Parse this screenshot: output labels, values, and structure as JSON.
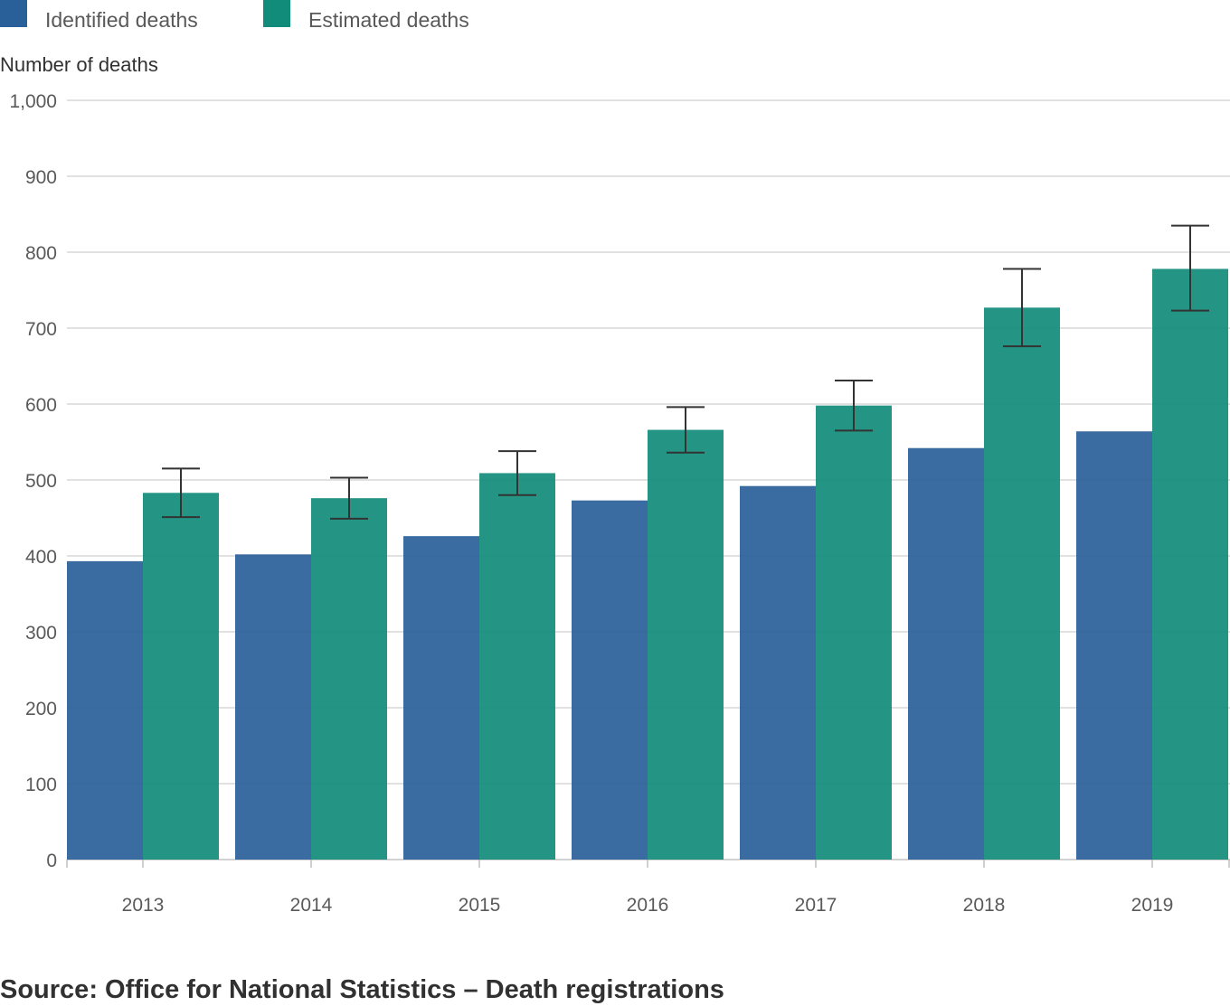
{
  "chart_data": {
    "type": "bar",
    "categories": [
      "2013",
      "2014",
      "2015",
      "2016",
      "2017",
      "2018",
      "2019"
    ],
    "series": [
      {
        "name": "Identified deaths",
        "color": "#2a6099",
        "values": [
          393,
          402,
          426,
          473,
          492,
          542,
          564
        ]
      },
      {
        "name": "Estimated deaths",
        "color": "#118c7b",
        "values": [
          483,
          476,
          509,
          566,
          598,
          727,
          778
        ],
        "error_low": [
          451,
          449,
          480,
          536,
          565,
          676,
          723
        ],
        "error_high": [
          515,
          503,
          538,
          596,
          631,
          778,
          835
        ]
      }
    ],
    "ylabel": "Number of deaths",
    "xlabel": "",
    "ylim": [
      0,
      1000
    ],
    "yticks": [
      0,
      100,
      200,
      300,
      400,
      500,
      600,
      700,
      800,
      900,
      1000
    ],
    "ytick_labels": [
      "0",
      "100",
      "200",
      "300",
      "400",
      "500",
      "600",
      "700",
      "800",
      "900",
      "1,000"
    ],
    "grid": true,
    "legend_position": "top-left"
  },
  "source": "Source: Office for National Statistics – Death registrations"
}
